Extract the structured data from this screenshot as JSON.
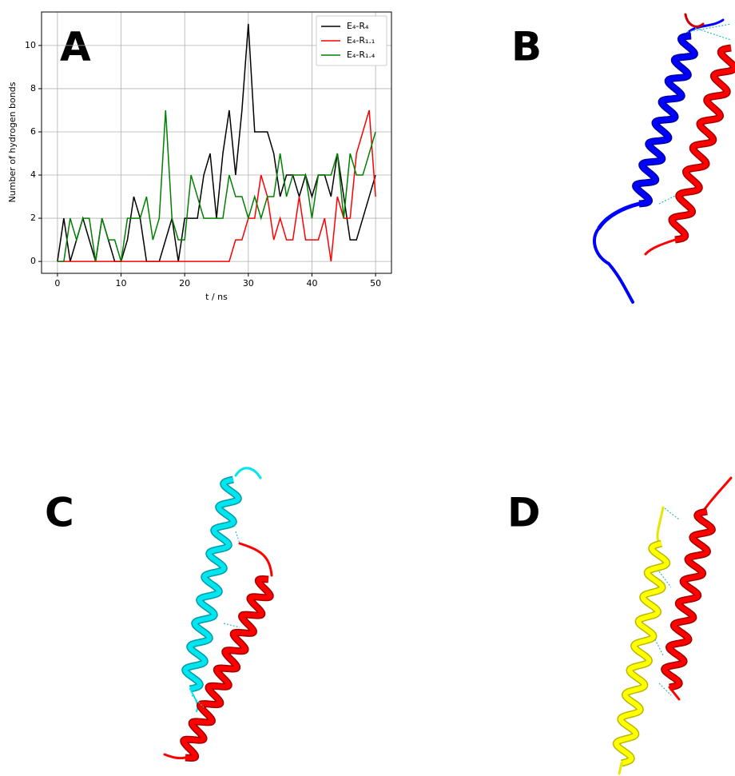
{
  "panel_labels": [
    "A",
    "B",
    "C",
    "D"
  ],
  "chart_data": {
    "type": "line",
    "xlabel": "t / ns",
    "ylabel": "Number of hydrogen bonds",
    "x": [
      0,
      1,
      2,
      3,
      4,
      5,
      6,
      7,
      8,
      9,
      10,
      11,
      12,
      13,
      14,
      15,
      16,
      17,
      18,
      19,
      20,
      21,
      22,
      23,
      24,
      25,
      26,
      27,
      28,
      29,
      30,
      31,
      32,
      33,
      34,
      35,
      36,
      37,
      38,
      39,
      40,
      41,
      42,
      43,
      44,
      45,
      46,
      47,
      48,
      49,
      50
    ],
    "series": [
      {
        "name": "E₄-R₄",
        "color": "#000000",
        "values": [
          0,
          2,
          0,
          1,
          2,
          1,
          0,
          2,
          1,
          0,
          0,
          1,
          3,
          2,
          0,
          0,
          0,
          1,
          2,
          0,
          2,
          2,
          2,
          4,
          5,
          2,
          5,
          7,
          4,
          7,
          11,
          6,
          6,
          6,
          5,
          3,
          4,
          4,
          3,
          4,
          3,
          4,
          4,
          3,
          5,
          3,
          1,
          1,
          2,
          3,
          4
        ]
      },
      {
        "name": "E₄-R₁.₁",
        "color": "#ff0000",
        "values": [
          0,
          0,
          0,
          0,
          0,
          0,
          0,
          0,
          0,
          0,
          0,
          0,
          0,
          0,
          0,
          0,
          0,
          0,
          0,
          0,
          0,
          0,
          0,
          0,
          0,
          0,
          0,
          0,
          1,
          1,
          2,
          2,
          4,
          3,
          1,
          2,
          1,
          1,
          3,
          1,
          1,
          1,
          2,
          0,
          3,
          2,
          2,
          5,
          6,
          7,
          3
        ]
      },
      {
        "name": "E₄-R₁.₄",
        "color": "#008000",
        "values": [
          0,
          0,
          2,
          1,
          2,
          2,
          0,
          2,
          1,
          1,
          0,
          2,
          2,
          2,
          3,
          1,
          2,
          7,
          2,
          1,
          1,
          4,
          3,
          2,
          2,
          2,
          2,
          4,
          3,
          3,
          2,
          3,
          2,
          3,
          3,
          5,
          3,
          4,
          4,
          4,
          2,
          4,
          4,
          4,
          5,
          2,
          5,
          4,
          4,
          5,
          6
        ]
      }
    ],
    "xlim": [
      -2.5,
      52.5
    ],
    "ylim": [
      -0.55,
      11.55
    ],
    "xticks": [
      0,
      10,
      20,
      30,
      40,
      50
    ],
    "yticks": [
      0,
      2,
      4,
      6,
      8,
      10
    ],
    "grid": true,
    "legend": "upper right"
  }
}
